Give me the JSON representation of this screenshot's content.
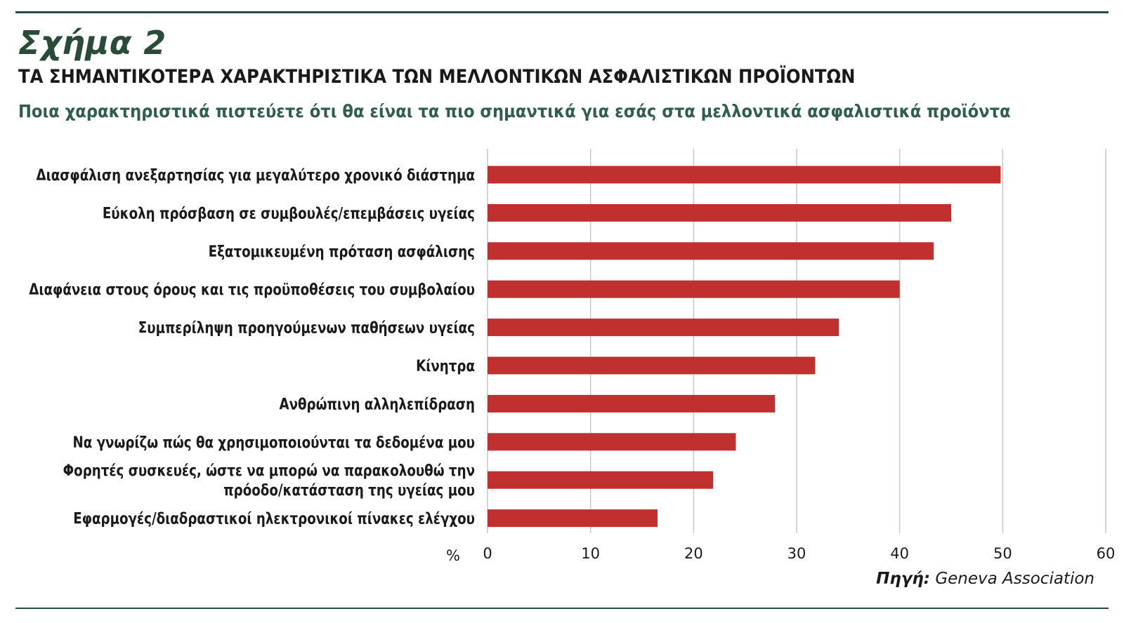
{
  "figure_label": "Σχήμα 2",
  "source": {
    "label": "Πηγή:",
    "name": "Geneva Association"
  },
  "chart_data": {
    "type": "bar",
    "orientation": "horizontal",
    "title": "ΤΑ ΣΗΜΑΝΤΙΚΟΤΕΡΑ ΧΑΡΑΚΤΗΡΙΣΤΙΚΑ ΤΩΝ ΜΕΛΛΟΝΤΙΚΩΝ ΑΣΦΑΛΙΣΤΙΚΩΝ ΠΡΟΪΟΝΤΩΝ",
    "subtitle": "Ποια χαρακτηριστικά πιστεύετε ότι θα είναι τα πιο σημαντικά για εσάς στα μελλοντικά ασφαλιστικά προϊόντα",
    "xlabel": "%",
    "ylabel": "",
    "xlim": [
      0,
      60
    ],
    "ticks": [
      "0",
      "10",
      "20",
      "30",
      "40",
      "50",
      "60"
    ],
    "grid": true,
    "bar_color": "#c0302f",
    "grid_color": "#c8c8c8",
    "categories": [
      [
        "Διασφάλιση ανεξαρτησίας για μεγαλύτερο χρονικό διάστημα"
      ],
      [
        "Εύκολη πρόσβαση σε συμβουλές/επεμβάσεις υγείας"
      ],
      [
        "Εξατομικευμένη πρόταση ασφάλισης"
      ],
      [
        "Διαφάνεια στους όρους και τις προϋποθέσεις του συμβολαίου"
      ],
      [
        "Συμπερίληψη προηγούμενων παθήσεων υγείας"
      ],
      [
        "Κίνητρα"
      ],
      [
        "Ανθρώπινη αλληλεπίδραση"
      ],
      [
        "Να γνωρίζω πώς θα χρησιμοποιούνται τα δεδομένα μου"
      ],
      [
        "Φορητές συσκευές, ώστε να μπορώ να παρακολουθώ την",
        "πρόοδο/κατάσταση της υγείας μου"
      ],
      [
        "Εφαρμογές/διαδραστικοί ηλεκτρονικοί πίνακες ελέγχου"
      ]
    ],
    "values": [
      49.8,
      45.0,
      43.3,
      40.0,
      34.1,
      31.8,
      27.9,
      24.1,
      21.9,
      16.5
    ]
  }
}
